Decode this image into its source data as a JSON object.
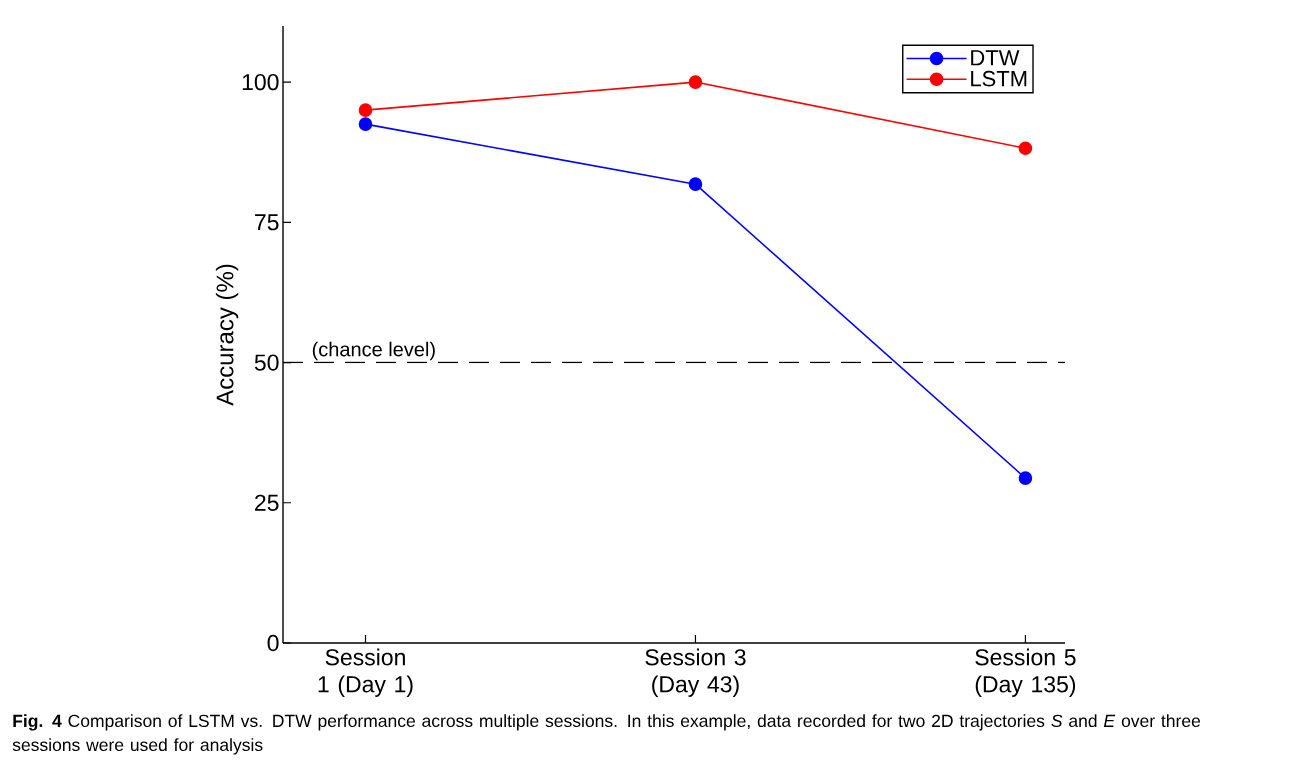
{
  "chart_data": {
    "type": "line",
    "ylabel": "Accuracy (%)",
    "categories": [
      "Session 1 (Day 1)",
      "Session 3 (Day 43)",
      "Session 5 (Day 135)"
    ],
    "series": [
      {
        "name": "DTW",
        "color": "#0000ff",
        "values": [
          92.5,
          81.8,
          29.4
        ]
      },
      {
        "name": "LSTM",
        "color": "#ff0000",
        "values": [
          95.0,
          100.0,
          88.2
        ]
      }
    ],
    "ylim": [
      0,
      110
    ],
    "yticks": [
      0,
      25,
      50,
      75,
      100
    ],
    "ref_lines": [
      {
        "axis": "y",
        "value": 50,
        "label": "(chance level)",
        "color": "#000000",
        "line_style": "dashed"
      }
    ],
    "annotations": [
      "**Fig. 4** Comparison of LSTM vs. DTW performance across multiple sessions. In this example, data recorded for two 2D trajectories *S* and *E* over three sessions were used for analysis"
    ],
    "legend": "top right",
    "marker": "circle",
    "line_style": "solid",
    "grid": false
  }
}
